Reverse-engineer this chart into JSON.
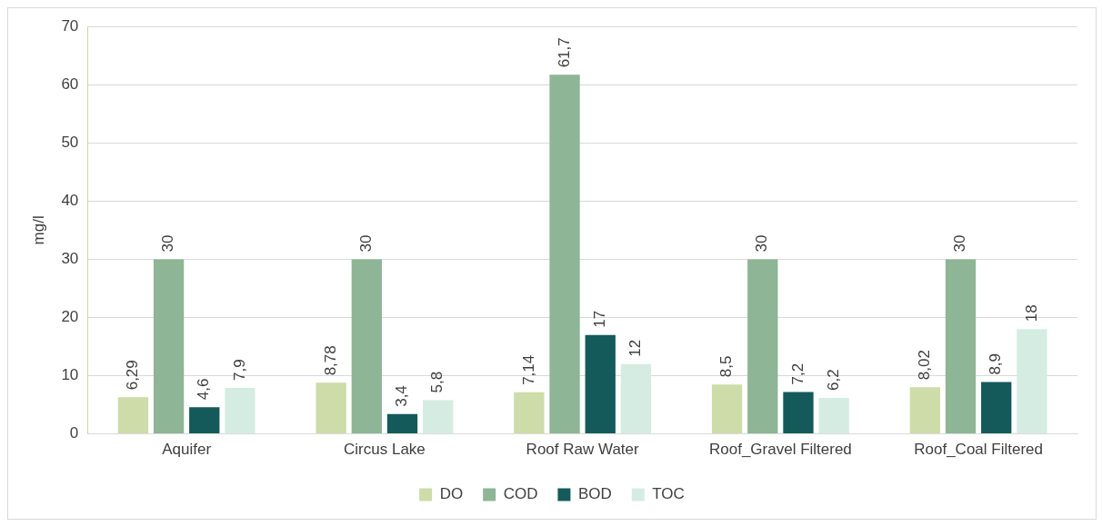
{
  "chart_data": {
    "type": "bar",
    "ylabel": "mg/l",
    "categories": [
      "Aquifer",
      "Circus Lake",
      "Roof Raw Water",
      "Roof_Gravel Filtered",
      "Roof_Coal Filtered"
    ],
    "series": [
      {
        "name": "DO",
        "color": "#cddca8",
        "values": [
          6.29,
          8.78,
          7.14,
          8.5,
          8.02
        ],
        "value_labels": [
          "6,29",
          "8,78",
          "7,14",
          "8,5",
          "8,02"
        ]
      },
      {
        "name": "COD",
        "color": "#8db596",
        "values": [
          30,
          30,
          61.7,
          30,
          30
        ],
        "value_labels": [
          "30",
          "30",
          "61,7",
          "30",
          "30"
        ]
      },
      {
        "name": "BOD",
        "color": "#155a5a",
        "values": [
          4.6,
          3.4,
          17,
          7.2,
          8.9
        ],
        "value_labels": [
          "4,6",
          "3,4",
          "17",
          "7,2",
          "8,9"
        ]
      },
      {
        "name": "TOC",
        "color": "#d5ece2",
        "values": [
          7.9,
          5.8,
          12,
          6.2,
          18
        ],
        "value_labels": [
          "7,9",
          "5,8",
          "12",
          "6,2",
          "18"
        ]
      }
    ],
    "ylim": [
      0,
      70
    ],
    "yticks": [
      0,
      10,
      20,
      30,
      40,
      50,
      60,
      70
    ],
    "grid": "y",
    "legend": "bottom"
  }
}
